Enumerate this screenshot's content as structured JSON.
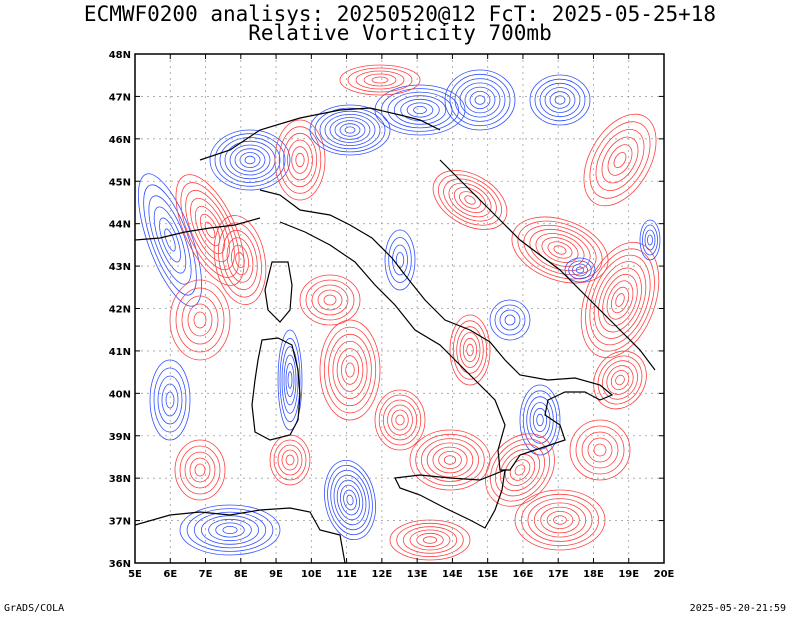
{
  "title_line1": "ECMWF0200 analisys: 20250520@12 FcT: 2025-05-25+18",
  "title_line2": "Relative Vorticity 700mb",
  "lat_labels": [
    "48N",
    "47N",
    "46N",
    "45N",
    "44N",
    "43N",
    "42N",
    "41N",
    "40N",
    "39N",
    "38N",
    "37N",
    "36N"
  ],
  "lon_labels": [
    "5E",
    "6E",
    "7E",
    "8E",
    "9E",
    "10E",
    "11E",
    "12E",
    "13E",
    "14E",
    "15E",
    "16E",
    "17E",
    "18E",
    "19E",
    "20E"
  ],
  "footer_left": "GrADS/COLA",
  "footer_right": "2025-05-20-21:59",
  "colors": {
    "positive": "#ff4040",
    "negative": "#3050ff",
    "coast": "#000000",
    "grid": "#a0a0a0",
    "zero": "#c080c0"
  }
}
